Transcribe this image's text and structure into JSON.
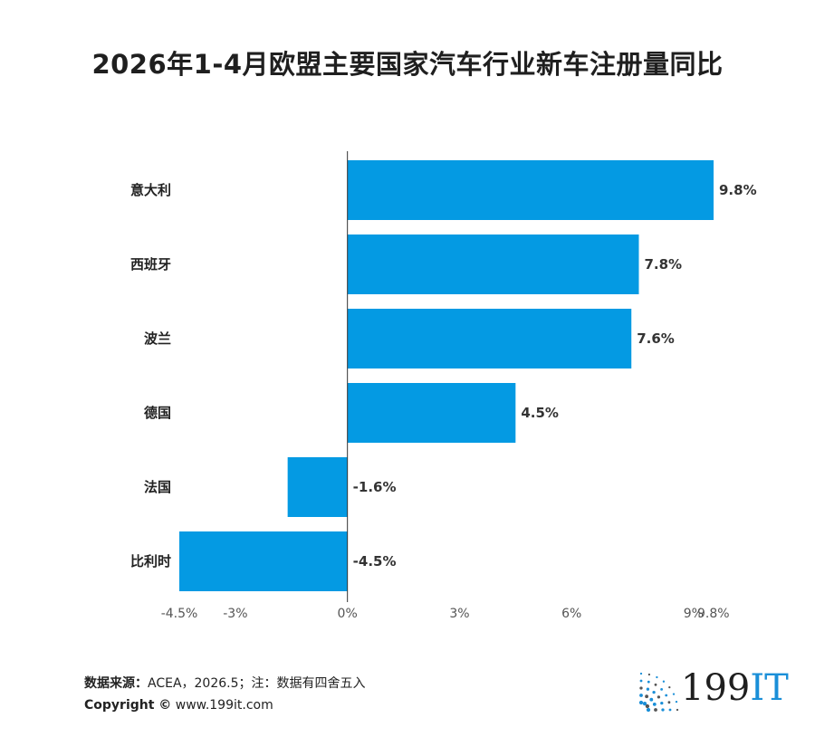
{
  "chart_data": {
    "type": "bar",
    "orientation": "horizontal",
    "title": "2026年1-4月欧盟主要国家汽车行业新车注册量同比",
    "categories": [
      "意大利",
      "西班牙",
      "波兰",
      "德国",
      "法国",
      "比利时"
    ],
    "values": [
      9.8,
      7.8,
      7.6,
      4.5,
      -1.6,
      -4.5
    ],
    "value_labels": [
      "9.8%",
      "7.8%",
      "7.6%",
      "4.5%",
      "-1.6%",
      "-4.5%"
    ],
    "xticks": [
      -4.5,
      -3,
      0,
      3,
      6,
      9,
      9.8
    ],
    "xtick_labels": [
      "-4.5%",
      "-3%",
      "0%",
      "3%",
      "6%",
      "9%",
      "9.8%"
    ],
    "xlim": [
      -4.5,
      9.8
    ],
    "bar_color": "#049ae3",
    "grid": false
  },
  "footer": {
    "source_key": "数据来源：",
    "source_text": "ACEA，2026.5；注：数据有四舍五入",
    "copyright_key": "Copyright ©",
    "copyright_text": " www.199it.com"
  },
  "brand": {
    "number": "199",
    "suffix": "IT",
    "icon": "dot-fan-logo-icon",
    "accent": "#1a8fd8"
  }
}
